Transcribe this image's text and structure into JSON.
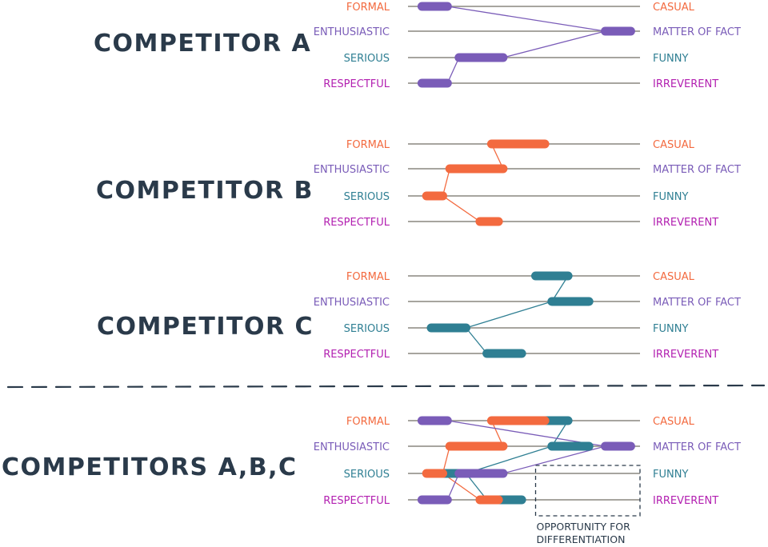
{
  "colors": {
    "ink": "#2a3a4a",
    "axis": "#a7a59f",
    "orange": "#f36a3f",
    "purple": "#7a5cb8",
    "teal": "#2f7f93",
    "magenta": "#b21fb0"
  },
  "scale_labels": [
    {
      "left": "FORMAL",
      "right": "CASUAL",
      "left_color": "orange",
      "right_color": "orange"
    },
    {
      "left": "ENTHUSIASTIC",
      "right": "MATTER OF FACT",
      "left_color": "purple",
      "right_color": "purple"
    },
    {
      "left": "SERIOUS",
      "right": "FUNNY",
      "left_color": "teal",
      "right_color": "teal"
    },
    {
      "left": "RESPECTFUL",
      "right": "IRREVERENT",
      "left_color": "magenta",
      "right_color": "magenta"
    }
  ],
  "panels": [
    {
      "title": "COMPETITOR A",
      "competitors": [
        {
          "name": "A",
          "color": "purple",
          "ranges": [
            [
              0.06,
              0.17
            ],
            [
              0.85,
              0.96
            ],
            [
              0.22,
              0.41
            ],
            [
              0.06,
              0.17
            ]
          ]
        }
      ]
    },
    {
      "title": "COMPETITOR B",
      "competitors": [
        {
          "name": "B",
          "color": "orange",
          "ranges": [
            [
              0.36,
              0.59
            ],
            [
              0.18,
              0.41
            ],
            [
              0.08,
              0.15
            ],
            [
              0.31,
              0.39
            ]
          ]
        }
      ]
    },
    {
      "title": "COMPETITOR C",
      "competitors": [
        {
          "name": "C",
          "color": "teal",
          "ranges": [
            [
              0.55,
              0.69
            ],
            [
              0.62,
              0.78
            ],
            [
              0.1,
              0.25
            ],
            [
              0.34,
              0.49
            ]
          ]
        }
      ]
    },
    {
      "title": "COMPETITORS A,B,C",
      "competitors": [
        {
          "name": "C",
          "color": "teal",
          "ranges": [
            [
              0.55,
              0.69
            ],
            [
              0.62,
              0.78
            ],
            [
              0.1,
              0.25
            ],
            [
              0.34,
              0.49
            ]
          ]
        },
        {
          "name": "B",
          "color": "orange",
          "ranges": [
            [
              0.36,
              0.59
            ],
            [
              0.18,
              0.41
            ],
            [
              0.08,
              0.15
            ],
            [
              0.31,
              0.39
            ]
          ]
        },
        {
          "name": "A",
          "color": "purple",
          "ranges": [
            [
              0.06,
              0.17
            ],
            [
              0.85,
              0.96
            ],
            [
              0.22,
              0.41
            ],
            [
              0.06,
              0.17
            ]
          ]
        }
      ],
      "annotation": {
        "lines": [
          "OPPORTUNITY FOR",
          "DIFFERENTIATION"
        ],
        "scale_range": [
          0.55,
          1.0
        ],
        "rows": [
          2,
          3
        ]
      }
    }
  ]
}
